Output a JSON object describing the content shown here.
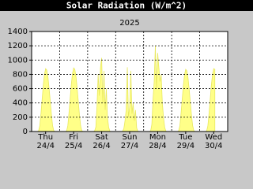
{
  "chart_data": {
    "type": "area",
    "title": "Solar Radiation (W/m^2)",
    "subtitle": "2025",
    "xlim": [
      0,
      168
    ],
    "ylim": [
      0,
      1400
    ],
    "yticks": [
      0,
      200,
      400,
      600,
      800,
      1000,
      1200,
      1400
    ],
    "grid": true,
    "xticks": [
      {
        "value": 12,
        "label": "Thu\n24/4"
      },
      {
        "value": 36,
        "label": "Fri\n25/4"
      },
      {
        "value": 60,
        "label": "Sat\n26/4"
      },
      {
        "value": 84,
        "label": "Sun\n27/4"
      },
      {
        "value": 108,
        "label": "Mon\n28/4"
      },
      {
        "value": 132,
        "label": "Tue\n29/4"
      },
      {
        "value": 156,
        "label": "Wed\n30/4"
      }
    ],
    "x": [
      0,
      1,
      2,
      3,
      4,
      5,
      6,
      7,
      8,
      9,
      10,
      11,
      12,
      13,
      14,
      15,
      16,
      17,
      18,
      19,
      20,
      21,
      22,
      23,
      24,
      25,
      26,
      27,
      28,
      29,
      30,
      31,
      32,
      33,
      34,
      35,
      36,
      37,
      38,
      39,
      40,
      41,
      42,
      43,
      44,
      45,
      46,
      47,
      48,
      49,
      50,
      51,
      52,
      53,
      54,
      55,
      56,
      57,
      58,
      59,
      60,
      61,
      62,
      63,
      64,
      65,
      66,
      67,
      68,
      69,
      70,
      71,
      72,
      73,
      74,
      75,
      76,
      77,
      78,
      79,
      80,
      81,
      82,
      83,
      84,
      85,
      86,
      87,
      88,
      89,
      90,
      91,
      92,
      93,
      94,
      95,
      96,
      97,
      98,
      99,
      100,
      101,
      102,
      103,
      104,
      105,
      106,
      107,
      108,
      109,
      110,
      111,
      112,
      113,
      114,
      115,
      116,
      117,
      118,
      119,
      120,
      121,
      122,
      123,
      124,
      125,
      126,
      127,
      128,
      129,
      130,
      131,
      132,
      133,
      134,
      135,
      136,
      137,
      138,
      139,
      140,
      141,
      142,
      143,
      144,
      145,
      146,
      147,
      148,
      149,
      150,
      151,
      152,
      153,
      154,
      155,
      156,
      157
    ],
    "series": [
      {
        "color": "#ffff88",
        "values": [
          0,
          0,
          0,
          0,
          0,
          0,
          10,
          80,
          250,
          450,
          650,
          800,
          880,
          860,
          760,
          600,
          420,
          230,
          80,
          10,
          0,
          0,
          0,
          0,
          0,
          0,
          0,
          0,
          0,
          0,
          10,
          80,
          260,
          460,
          660,
          810,
          890,
          870,
          770,
          610,
          420,
          230,
          80,
          10,
          0,
          0,
          0,
          0,
          0,
          0,
          0,
          0,
          0,
          0,
          10,
          60,
          350,
          800,
          500,
          900,
          1030,
          400,
          850,
          300,
          600,
          200,
          60,
          5,
          0,
          0,
          0,
          0,
          0,
          0,
          0,
          0,
          0,
          0,
          5,
          40,
          150,
          300,
          900,
          200,
          350,
          850,
          250,
          400,
          150,
          300,
          50,
          5,
          0,
          0,
          0,
          0,
          0,
          0,
          0,
          0,
          0,
          0,
          10,
          100,
          450,
          700,
          1200,
          600,
          1100,
          900,
          700,
          800,
          400,
          200,
          60,
          5,
          0,
          0,
          0,
          0,
          0,
          0,
          0,
          0,
          0,
          0,
          10,
          80,
          250,
          450,
          640,
          790,
          870,
          850,
          750,
          590,
          410,
          220,
          80,
          10,
          0,
          0,
          0,
          0,
          0,
          0,
          0,
          0,
          0,
          0,
          10,
          80,
          250,
          450,
          650,
          800,
          880,
          870
        ]
      }
    ]
  }
}
